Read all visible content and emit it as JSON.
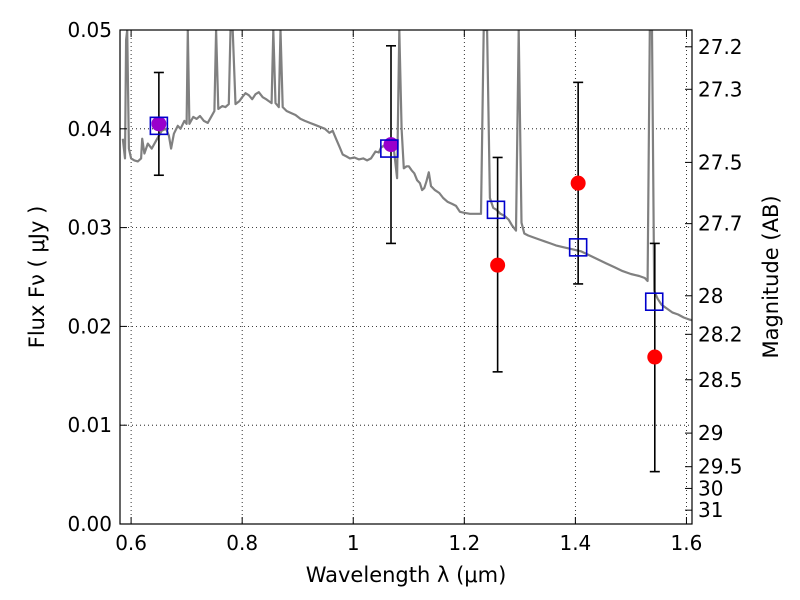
{
  "chart_data": {
    "type": "scatter",
    "xlabel": "Wavelength  λ (μm)",
    "ylabel": "Flux  Fν  ( μJy )",
    "ylabel_right": "Magnitude (AB)",
    "xlim": [
      0.58,
      1.61
    ],
    "ylim": [
      0.0,
      0.05
    ],
    "grid": true,
    "x_ticks": [
      0.6,
      0.8,
      1.0,
      1.2,
      1.4,
      1.6
    ],
    "x_tick_labels": [
      "0.6",
      "0.8",
      "1",
      "1.2",
      "1.4",
      "1.6"
    ],
    "y_ticks": [
      0.0,
      0.01,
      0.02,
      0.03,
      0.04,
      0.05
    ],
    "y_tick_labels": [
      "0.00",
      "0.01",
      "0.02",
      "0.03",
      "0.04",
      "0.05"
    ],
    "right_ticks": [
      {
        "label": "27.2",
        "flux": 0.0483
      },
      {
        "label": "27.3",
        "flux": 0.044
      },
      {
        "label": "27.5",
        "flux": 0.0366
      },
      {
        "label": "27.7",
        "flux": 0.0304
      },
      {
        "label": "28",
        "flux": 0.0231
      },
      {
        "label": "28.2",
        "flux": 0.0192
      },
      {
        "label": "28.5",
        "flux": 0.0146
      },
      {
        "label": "29",
        "flux": 0.0092
      },
      {
        "label": "29.5",
        "flux": 0.0058
      },
      {
        "label": "30",
        "flux": 0.0036
      },
      {
        "label": "31",
        "flux": 0.0014
      }
    ],
    "model_spectrum": {
      "color": "#808080",
      "points": [
        [
          0.585,
          0.039
        ],
        [
          0.589,
          0.037
        ],
        [
          0.591,
          0.049
        ],
        [
          0.593,
          0.05
        ],
        [
          0.596,
          0.038
        ],
        [
          0.6,
          0.037
        ],
        [
          0.606,
          0.0368
        ],
        [
          0.612,
          0.0367
        ],
        [
          0.618,
          0.037
        ],
        [
          0.62,
          0.039
        ],
        [
          0.624,
          0.0375
        ],
        [
          0.63,
          0.0385
        ],
        [
          0.637,
          0.038
        ],
        [
          0.645,
          0.0388
        ],
        [
          0.655,
          0.0398
        ],
        [
          0.663,
          0.04
        ],
        [
          0.668,
          0.0393
        ],
        [
          0.672,
          0.038
        ],
        [
          0.677,
          0.0395
        ],
        [
          0.684,
          0.0403
        ],
        [
          0.689,
          0.04
        ],
        [
          0.696,
          0.0408
        ],
        [
          0.7,
          0.0405
        ],
        [
          0.702,
          0.05
        ],
        [
          0.705,
          0.0405
        ],
        [
          0.712,
          0.0412
        ],
        [
          0.718,
          0.041
        ],
        [
          0.724,
          0.0413
        ],
        [
          0.731,
          0.0408
        ],
        [
          0.738,
          0.0406
        ],
        [
          0.744,
          0.0412
        ],
        [
          0.75,
          0.0418
        ],
        [
          0.753,
          0.05
        ],
        [
          0.757,
          0.042
        ],
        [
          0.764,
          0.0423
        ],
        [
          0.77,
          0.0422
        ],
        [
          0.776,
          0.0425
        ],
        [
          0.779,
          0.05
        ],
        [
          0.783,
          0.05
        ],
        [
          0.788,
          0.0425
        ],
        [
          0.795,
          0.0428
        ],
        [
          0.8,
          0.0432
        ],
        [
          0.806,
          0.0436
        ],
        [
          0.812,
          0.0434
        ],
        [
          0.818,
          0.043
        ],
        [
          0.824,
          0.0435
        ],
        [
          0.83,
          0.0437
        ],
        [
          0.837,
          0.0432
        ],
        [
          0.843,
          0.043
        ],
        [
          0.848,
          0.0428
        ],
        [
          0.853,
          0.0426
        ],
        [
          0.856,
          0.05
        ],
        [
          0.86,
          0.0426
        ],
        [
          0.866,
          0.0422
        ],
        [
          0.869,
          0.05
        ],
        [
          0.873,
          0.0422
        ],
        [
          0.88,
          0.0418
        ],
        [
          0.888,
          0.0416
        ],
        [
          0.896,
          0.0414
        ],
        [
          0.905,
          0.041
        ],
        [
          0.913,
          0.0408
        ],
        [
          0.922,
          0.0406
        ],
        [
          0.931,
          0.0404
        ],
        [
          0.94,
          0.0402
        ],
        [
          0.949,
          0.04
        ],
        [
          0.957,
          0.0396
        ],
        [
          0.963,
          0.0398
        ],
        [
          0.969,
          0.039
        ],
        [
          0.975,
          0.0382
        ],
        [
          0.981,
          0.0374
        ],
        [
          0.988,
          0.0372
        ],
        [
          0.994,
          0.037
        ],
        [
          1.002,
          0.0371
        ],
        [
          1.01,
          0.0369
        ],
        [
          1.018,
          0.037
        ],
        [
          1.025,
          0.0368
        ],
        [
          1.032,
          0.037
        ],
        [
          1.04,
          0.0377
        ],
        [
          1.046,
          0.0376
        ],
        [
          1.05,
          0.0381
        ],
        [
          1.055,
          0.0383
        ],
        [
          1.06,
          0.038
        ],
        [
          1.067,
          0.0383
        ],
        [
          1.073,
          0.038
        ],
        [
          1.079,
          0.035
        ],
        [
          1.083,
          0.05
        ],
        [
          1.087,
          0.04
        ],
        [
          1.091,
          0.036
        ],
        [
          1.096,
          0.0362
        ],
        [
          1.1,
          0.0362
        ],
        [
          1.105,
          0.0358
        ],
        [
          1.11,
          0.0355
        ],
        [
          1.115,
          0.0348
        ],
        [
          1.12,
          0.0345
        ],
        [
          1.124,
          0.0338
        ],
        [
          1.128,
          0.034
        ],
        [
          1.132,
          0.0347
        ],
        [
          1.136,
          0.0356
        ],
        [
          1.14,
          0.0342
        ],
        [
          1.147,
          0.0338
        ],
        [
          1.155,
          0.0335
        ],
        [
          1.162,
          0.033
        ],
        [
          1.17,
          0.0326
        ],
        [
          1.178,
          0.0324
        ],
        [
          1.185,
          0.0322
        ],
        [
          1.192,
          0.0316
        ],
        [
          1.2,
          0.0315
        ],
        [
          1.21,
          0.0314
        ],
        [
          1.22,
          0.0314
        ],
        [
          1.23,
          0.0314
        ],
        [
          1.235,
          0.05
        ],
        [
          1.241,
          0.05
        ],
        [
          1.246,
          0.033
        ],
        [
          1.252,
          0.032
        ],
        [
          1.258,
          0.0318
        ],
        [
          1.265,
          0.0314
        ],
        [
          1.272,
          0.0312
        ],
        [
          1.28,
          0.0308
        ],
        [
          1.286,
          0.0302
        ],
        [
          1.293,
          0.0297
        ],
        [
          1.298,
          0.05
        ],
        [
          1.303,
          0.0305
        ],
        [
          1.308,
          0.0294
        ],
        [
          1.315,
          0.0292
        ],
        [
          1.325,
          0.029
        ],
        [
          1.335,
          0.0288
        ],
        [
          1.345,
          0.0286
        ],
        [
          1.355,
          0.0284
        ],
        [
          1.365,
          0.0282
        ],
        [
          1.38,
          0.028
        ],
        [
          1.395,
          0.0278
        ],
        [
          1.41,
          0.0276
        ],
        [
          1.425,
          0.0272
        ],
        [
          1.44,
          0.0268
        ],
        [
          1.455,
          0.0264
        ],
        [
          1.47,
          0.026
        ],
        [
          1.485,
          0.0256
        ],
        [
          1.5,
          0.0253
        ],
        [
          1.515,
          0.0251
        ],
        [
          1.525,
          0.0249
        ],
        [
          1.53,
          0.0246
        ],
        [
          1.534,
          0.05
        ],
        [
          1.538,
          0.05
        ],
        [
          1.542,
          0.0236
        ],
        [
          1.548,
          0.0228
        ],
        [
          1.555,
          0.0222
        ],
        [
          1.565,
          0.0218
        ],
        [
          1.575,
          0.0214
        ],
        [
          1.585,
          0.0212
        ],
        [
          1.595,
          0.0209
        ],
        [
          1.605,
          0.0207
        ],
        [
          1.612,
          0.0206
        ]
      ]
    },
    "model_photometry": {
      "marker": "open-square",
      "color": "#0000cc",
      "points": [
        {
          "x": 0.65,
          "y": 0.0403
        },
        {
          "x": 1.065,
          "y": 0.038
        },
        {
          "x": 1.257,
          "y": 0.0318
        },
        {
          "x": 1.405,
          "y": 0.028
        },
        {
          "x": 1.542,
          "y": 0.0225
        }
      ]
    },
    "observed": {
      "marker": "filled-circle",
      "color": "#ff0000",
      "overlap_color": "#9900cc",
      "points": [
        {
          "x": 0.65,
          "y": 0.0405,
          "yerr_low": 0.0353,
          "yerr_high": 0.0457
        },
        {
          "x": 1.068,
          "y": 0.0384,
          "yerr_low": 0.0284,
          "yerr_high": 0.0484
        },
        {
          "x": 1.26,
          "y": 0.0262,
          "yerr_low": 0.0154,
          "yerr_high": 0.0371
        },
        {
          "x": 1.405,
          "y": 0.0345,
          "yerr_low": 0.0243,
          "yerr_high": 0.0447
        },
        {
          "x": 1.543,
          "y": 0.0169,
          "yerr_low": 0.0053,
          "yerr_high": 0.0284
        }
      ]
    }
  }
}
